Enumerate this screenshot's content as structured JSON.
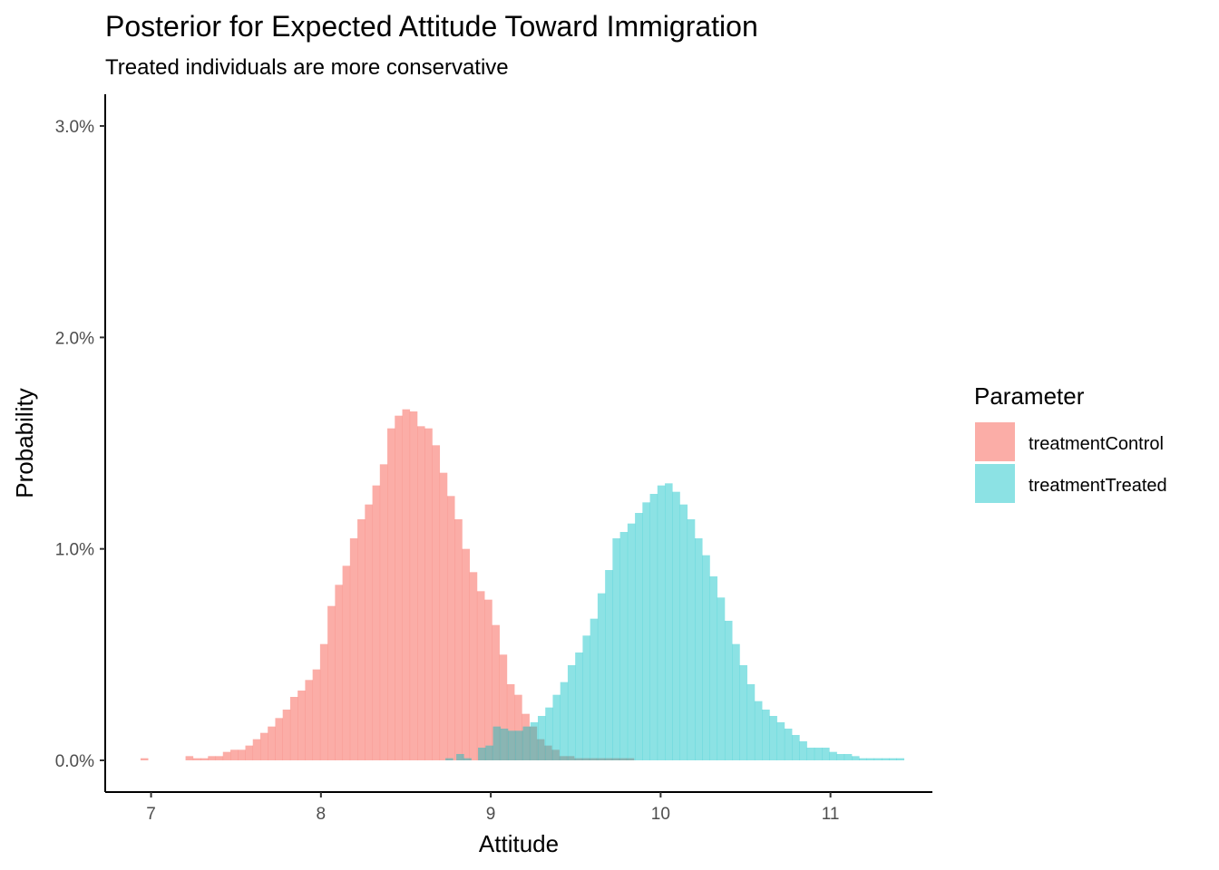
{
  "chart_data": {
    "type": "histogram",
    "title": "Posterior for Expected Attitude Toward Immigration",
    "subtitle": "Treated individuals are more conservative",
    "xlabel": "Attitude",
    "ylabel": "Probability",
    "xlim": [
      6.73,
      11.6
    ],
    "ylim": [
      -0.0015,
      0.0315
    ],
    "x_ticks": [
      7,
      8,
      9,
      10,
      11
    ],
    "y_ticks": [
      0,
      0.01,
      0.02,
      0.03
    ],
    "y_tick_labels": [
      "0.0%",
      "1.0%",
      "2.0%",
      "3.0%"
    ],
    "x_tick_labels": [
      "7",
      "8",
      "9",
      "10",
      "11"
    ],
    "grid": false,
    "bin_width": 0.044,
    "legend": {
      "title": "Parameter",
      "position": "right"
    },
    "series": [
      {
        "name": "treatmentControl",
        "color": "#F8766D",
        "opacity": 0.6,
        "bins": [
          [
            6.96,
            0.0001
          ],
          [
            7.225,
            0.0002
          ],
          [
            7.269,
            0.0001
          ],
          [
            7.313,
            0.0001
          ],
          [
            7.357,
            0.0002
          ],
          [
            7.401,
            0.0002
          ],
          [
            7.445,
            0.0004
          ],
          [
            7.489,
            0.0005
          ],
          [
            7.533,
            0.0005
          ],
          [
            7.577,
            0.0007
          ],
          [
            7.621,
            0.001
          ],
          [
            7.665,
            0.0013
          ],
          [
            7.709,
            0.0016
          ],
          [
            7.753,
            0.002
          ],
          [
            7.797,
            0.0024
          ],
          [
            7.841,
            0.003
          ],
          [
            7.885,
            0.0033
          ],
          [
            7.929,
            0.0038
          ],
          [
            7.973,
            0.0043
          ],
          [
            8.017,
            0.0055
          ],
          [
            8.061,
            0.0073
          ],
          [
            8.105,
            0.0083
          ],
          [
            8.149,
            0.0092
          ],
          [
            8.193,
            0.0105
          ],
          [
            8.237,
            0.0114
          ],
          [
            8.281,
            0.0121
          ],
          [
            8.325,
            0.013
          ],
          [
            8.369,
            0.014
          ],
          [
            8.413,
            0.0157
          ],
          [
            8.457,
            0.0163
          ],
          [
            8.501,
            0.0166
          ],
          [
            8.545,
            0.0165
          ],
          [
            8.589,
            0.0158
          ],
          [
            8.633,
            0.0157
          ],
          [
            8.677,
            0.0149
          ],
          [
            8.721,
            0.0136
          ],
          [
            8.765,
            0.0125
          ],
          [
            8.809,
            0.0114
          ],
          [
            8.853,
            0.01
          ],
          [
            8.897,
            0.0089
          ],
          [
            8.941,
            0.008
          ],
          [
            8.985,
            0.0076
          ],
          [
            9.029,
            0.0064
          ],
          [
            9.073,
            0.005
          ],
          [
            9.117,
            0.0036
          ],
          [
            9.161,
            0.0031
          ],
          [
            9.205,
            0.0022
          ],
          [
            9.249,
            0.0016
          ],
          [
            9.293,
            0.001
          ],
          [
            9.337,
            0.0007
          ],
          [
            9.381,
            0.0005
          ],
          [
            9.425,
            0.0002
          ],
          [
            9.469,
            0.0002
          ],
          [
            9.513,
            0.0001
          ],
          [
            9.557,
            0.0001
          ],
          [
            9.601,
            0.0001
          ],
          [
            9.645,
            0.0001
          ],
          [
            9.689,
            0.0001
          ],
          [
            9.733,
            0.0001
          ],
          [
            9.777,
            0.0001
          ],
          [
            9.821,
            0.0001
          ]
        ]
      },
      {
        "name": "treatmentTreated",
        "color": "#00BFC4",
        "opacity": 0.45,
        "bins": [
          [
            8.755,
            0.0001
          ],
          [
            8.819,
            0.0003
          ],
          [
            8.863,
            0.0001
          ],
          [
            8.947,
            0.0006
          ],
          [
            8.991,
            0.0007
          ],
          [
            9.035,
            0.0016
          ],
          [
            9.079,
            0.0015
          ],
          [
            9.123,
            0.0014
          ],
          [
            9.167,
            0.0014
          ],
          [
            9.211,
            0.0016
          ],
          [
            9.255,
            0.0018
          ],
          [
            9.299,
            0.0021
          ],
          [
            9.343,
            0.0025
          ],
          [
            9.387,
            0.0031
          ],
          [
            9.431,
            0.0037
          ],
          [
            9.475,
            0.0045
          ],
          [
            9.519,
            0.0051
          ],
          [
            9.563,
            0.0059
          ],
          [
            9.607,
            0.0067
          ],
          [
            9.651,
            0.0079
          ],
          [
            9.695,
            0.009
          ],
          [
            9.739,
            0.0105
          ],
          [
            9.783,
            0.0108
          ],
          [
            9.827,
            0.0112
          ],
          [
            9.871,
            0.0117
          ],
          [
            9.915,
            0.0122
          ],
          [
            9.959,
            0.0126
          ],
          [
            10.003,
            0.013
          ],
          [
            10.047,
            0.0131
          ],
          [
            10.091,
            0.0127
          ],
          [
            10.135,
            0.0121
          ],
          [
            10.179,
            0.0114
          ],
          [
            10.223,
            0.0105
          ],
          [
            10.267,
            0.0097
          ],
          [
            10.311,
            0.0087
          ],
          [
            10.355,
            0.0077
          ],
          [
            10.399,
            0.0066
          ],
          [
            10.443,
            0.0055
          ],
          [
            10.487,
            0.0045
          ],
          [
            10.531,
            0.0036
          ],
          [
            10.575,
            0.0028
          ],
          [
            10.619,
            0.0024
          ],
          [
            10.663,
            0.0021
          ],
          [
            10.707,
            0.0018
          ],
          [
            10.751,
            0.0015
          ],
          [
            10.795,
            0.0012
          ],
          [
            10.839,
            0.0009
          ],
          [
            10.883,
            0.0006
          ],
          [
            10.927,
            0.0006
          ],
          [
            10.971,
            0.0006
          ],
          [
            11.015,
            0.0004
          ],
          [
            11.059,
            0.0003
          ],
          [
            11.103,
            0.0003
          ],
          [
            11.147,
            0.0002
          ],
          [
            11.191,
            0.0001
          ],
          [
            11.235,
            0.0001
          ],
          [
            11.279,
            0.0001
          ],
          [
            11.323,
            0.0001
          ],
          [
            11.367,
            0.0001
          ],
          [
            11.411,
            0.0001
          ]
        ]
      }
    ]
  }
}
